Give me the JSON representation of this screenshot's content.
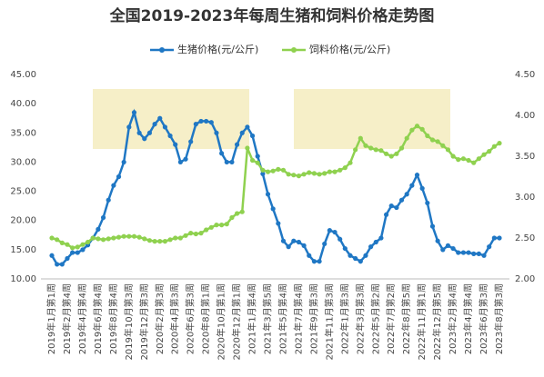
{
  "chart_data": {
    "type": "line",
    "title": "全国2019-2023年每周生猪和饲料价格走势图",
    "categories": [
      "2019年1月第1周",
      null,
      null,
      "2019年2月第4周",
      null,
      null,
      "2019年4月第4周",
      null,
      null,
      "2019年6月第4周",
      null,
      null,
      "2019年8月第4周",
      null,
      null,
      "2019年10月第3周",
      null,
      null,
      "2019年12月第3周",
      null,
      null,
      "2020年2月第3周",
      null,
      null,
      "2020年4月第3周",
      null,
      null,
      "2020年6月第3周",
      null,
      null,
      "2020年8月第1周",
      null,
      null,
      "2020年10月第1周",
      null,
      null,
      "2020年12月第1周",
      null,
      null,
      "2021年1月第4周",
      null,
      null,
      "2021年3月第5周",
      null,
      null,
      "2021年5月第4周",
      null,
      null,
      "2021年7月第4周",
      null,
      null,
      "2021年9月第3周",
      null,
      null,
      "2021年11月第3周",
      null,
      null,
      "2022年1月第3周",
      null,
      null,
      "2022年3月第3周",
      null,
      null,
      "2022年5月第2周",
      null,
      null,
      "2022年7月第2周",
      null,
      null,
      "2022年8月第5周",
      null,
      null,
      "2022年11月第1周",
      null,
      null,
      "2022年12月第5周",
      null,
      null,
      "2023年2月第4周",
      null,
      null,
      "2023年4月第4周",
      null,
      null,
      "2023年6月第3周",
      null,
      null,
      "2023年8月第3周"
    ],
    "series": [
      {
        "name": "生猪价格(元/公斤)",
        "color": "#1f77c4",
        "values": [
          14,
          12.5,
          12.5,
          13.5,
          14.5,
          14.5,
          15,
          15.8,
          17,
          18.5,
          20.5,
          23.5,
          26,
          27.5,
          30,
          36,
          38.5,
          35,
          34,
          35,
          36.5,
          37.5,
          36,
          34.5,
          33,
          30,
          30.5,
          33.5,
          36.5,
          37,
          37,
          36.8,
          35,
          31.5,
          30,
          30,
          33,
          35,
          36,
          34.5,
          31,
          28,
          24.5,
          22,
          19.5,
          16.5,
          15.5,
          16.5,
          16.3,
          15.7,
          14,
          13,
          13,
          16,
          18.3,
          18,
          16.8,
          15.2,
          14,
          13.5,
          13,
          14,
          15.5,
          16.3,
          17,
          21,
          22.5,
          22.2,
          23.5,
          24.5,
          26,
          27.8,
          25.5,
          23,
          19,
          16.5,
          15,
          15.7,
          15.2,
          14.5,
          14.5,
          14.5,
          14.3,
          14.3,
          14,
          15.5,
          17,
          17
        ]
      },
      {
        "name": "饲料价格(元/公斤)",
        "color": "#8fd14f",
        "axis": "y2",
        "values": [
          2.5,
          2.48,
          2.44,
          2.42,
          2.38,
          2.39,
          2.42,
          2.45,
          2.5,
          2.49,
          2.48,
          2.49,
          2.5,
          2.51,
          2.52,
          2.52,
          2.52,
          2.51,
          2.49,
          2.47,
          2.46,
          2.46,
          2.46,
          2.48,
          2.5,
          2.5,
          2.53,
          2.56,
          2.55,
          2.56,
          2.6,
          2.63,
          2.66,
          2.66,
          2.67,
          2.75,
          2.8,
          2.82,
          3.6,
          3.45,
          3.42,
          3.33,
          3.31,
          3.32,
          3.34,
          3.33,
          3.28,
          3.27,
          3.26,
          3.28,
          3.3,
          3.29,
          3.28,
          3.29,
          3.31,
          3.31,
          3.33,
          3.36,
          3.42,
          3.58,
          3.72,
          3.63,
          3.6,
          3.58,
          3.57,
          3.53,
          3.5,
          3.53,
          3.6,
          3.72,
          3.82,
          3.87,
          3.83,
          3.75,
          3.7,
          3.68,
          3.63,
          3.58,
          3.5,
          3.46,
          3.47,
          3.45,
          3.42,
          3.47,
          3.52,
          3.56,
          3.62,
          3.66
        ]
      }
    ],
    "ylim": [
      10,
      45
    ],
    "yticks": [
      {
        "value": 10,
        "label": "10.00"
      },
      {
        "value": 15,
        "label": "15.00"
      },
      {
        "value": 20,
        "label": "20.00"
      },
      {
        "value": 25,
        "label": "25.00"
      },
      {
        "value": 30,
        "label": "30.00"
      },
      {
        "value": 35,
        "label": "35.00"
      },
      {
        "value": 40,
        "label": "40.00"
      },
      {
        "value": 45,
        "label": "45.00"
      }
    ],
    "y2lim": [
      2,
      4.5
    ],
    "y2ticks": [
      {
        "value": 2,
        "label": "2.00"
      },
      {
        "value": 2.5,
        "label": "2.50"
      },
      {
        "value": 3,
        "label": "3.00"
      },
      {
        "value": 3.5,
        "label": "3.50"
      },
      {
        "value": 4,
        "label": "4.00"
      },
      {
        "value": 4.5,
        "label": "4.50"
      }
    ],
    "legend": "top"
  }
}
